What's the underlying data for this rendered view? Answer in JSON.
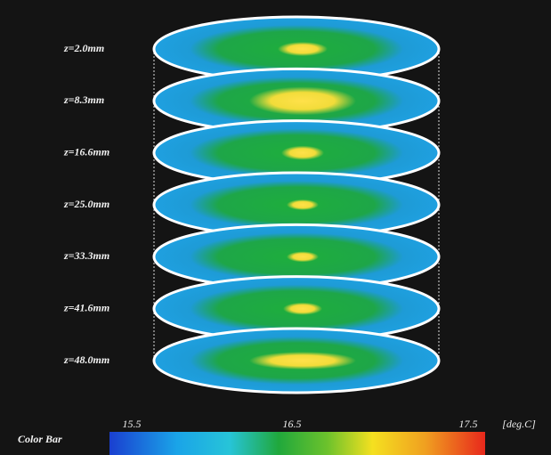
{
  "slices": [
    {
      "label": "z=2.0mm"
    },
    {
      "label": "z=8.3mm"
    },
    {
      "label": "z=16.6mm"
    },
    {
      "label": "z=25.0mm"
    },
    {
      "label": "z=33.3mm"
    },
    {
      "label": "z=41.6mm"
    },
    {
      "label": "z=48.0mm"
    }
  ],
  "colorbar": {
    "title": "Color Bar",
    "unit": "[deg.C]",
    "ticks": [
      15.5,
      16.5,
      17.5
    ]
  }
}
